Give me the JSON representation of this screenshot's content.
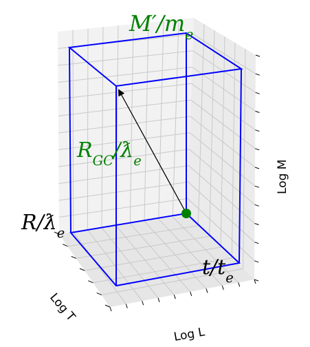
{
  "axes": {
    "x_label": "Log L",
    "y_label": "Log T",
    "z_label": "Log M"
  },
  "annotations": {
    "top": "M′/mₑ",
    "middle": "R_GC/ƛₑ",
    "left": "R/ƛₑ",
    "right": "t/tₑ"
  },
  "colors": {
    "box": "#0000ff",
    "label_green": "#008000",
    "point": "#008000",
    "arrow": "#000000",
    "pane": "#f2f2f2",
    "grid": "#c8c8c8"
  }
}
